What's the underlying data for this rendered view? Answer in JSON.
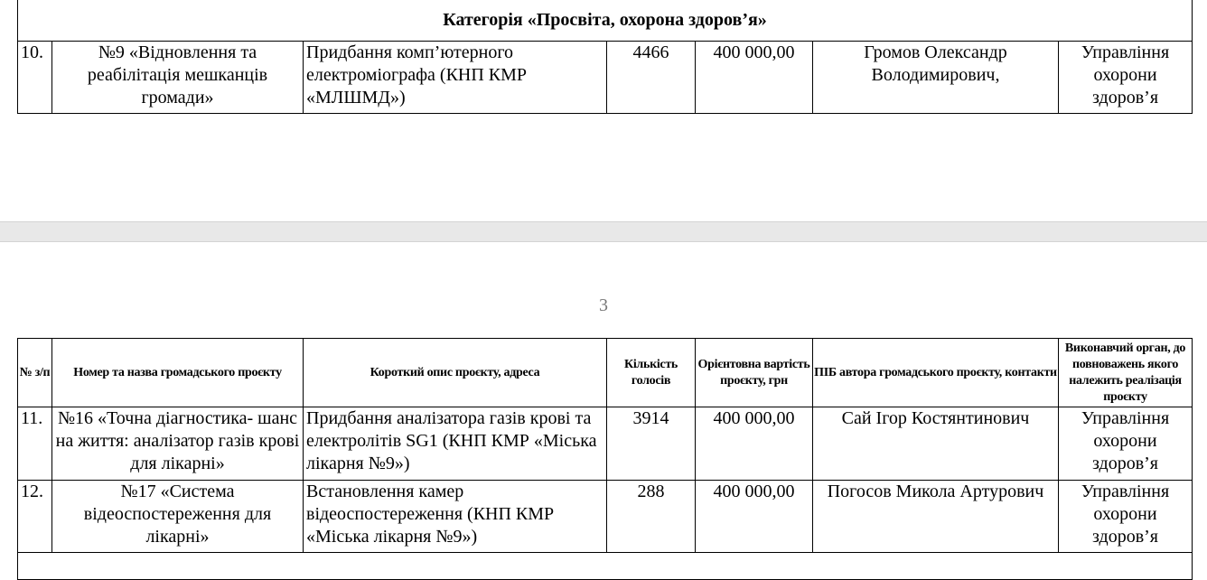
{
  "category_title": "Категорія «Просвіта, охорона здоров’я»",
  "page_number": "3",
  "headers": [
    "№ з/п",
    "Номер та назва громадського проєкту",
    "Короткий опис проєкту, адреса",
    "Кількість голосів",
    "Орієнтовна вартість проєкту, грн",
    "ПІБ автора громадського проєкту, контакти",
    "Виконавчий орган, до повноважень якого належить реалізація проєкту"
  ],
  "rows": [
    {
      "num": "10.",
      "name": "№9 «Відновлення та реабілітація мешканців громади»",
      "desc": "Придбання комп’ютерного електроміографа (КНП КМР «МЛШМД»)",
      "votes": "4466",
      "cost": "400 000,00",
      "author": "Громов Олександр Володимирович,",
      "executor": "Управління охорони здоров’я"
    },
    {
      "num": "11.",
      "name": "№16 «Точна діагностика- шанс на життя: аналізатор газів крові для лікарні»",
      "desc": "Придбання аналізатора газів крові та електролітів SG1 (КНП КМР «Міська лікарня №9»)",
      "votes": "3914",
      "cost": "400 000,00",
      "author": "Сай Ігор Костянтинович",
      "executor": "Управління охорони здоров’я"
    },
    {
      "num": "12.",
      "name": "№17 «Система відеоспостереження для лікарні»",
      "desc": "Встановлення камер відеоспостереження (КНП КМР «Міська лікарня №9»)",
      "votes": "288",
      "cost": "400 000,00",
      "author": "Погосов Микола Артурович",
      "executor": "Управління охорони здоров’я"
    }
  ]
}
